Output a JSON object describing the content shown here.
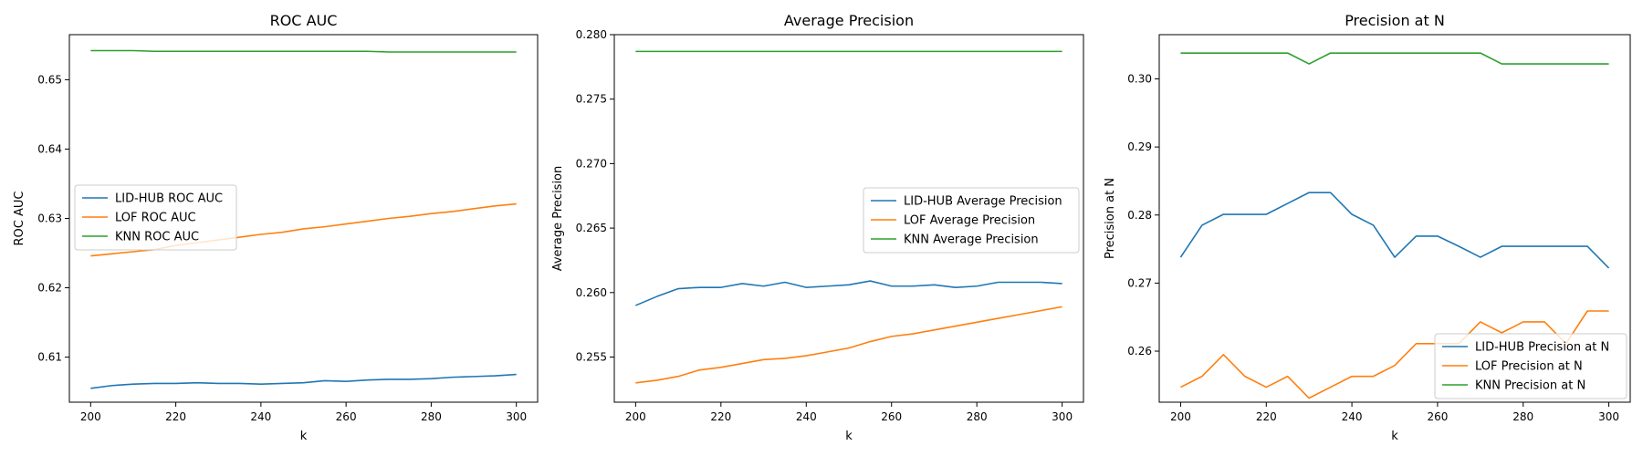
{
  "chart_data": [
    {
      "type": "line",
      "title": "ROC AUC",
      "xlabel": "k",
      "ylabel": "ROC AUC",
      "xlim": [
        195,
        305
      ],
      "ylim": [
        0.6035,
        0.6565
      ],
      "xticks": [
        200,
        220,
        240,
        260,
        280,
        300
      ],
      "yticks": [
        0.61,
        0.62,
        0.63,
        0.64,
        0.65
      ],
      "tick_decimals": 2,
      "legend_position": "center-left",
      "x": [
        200,
        205,
        210,
        215,
        220,
        225,
        230,
        235,
        240,
        245,
        250,
        255,
        260,
        265,
        270,
        275,
        280,
        285,
        290,
        295,
        300
      ],
      "series": [
        {
          "name": "LID-HUB ROC AUC",
          "color": "#1f77b4",
          "values": [
            0.6055,
            0.6059,
            0.6061,
            0.6062,
            0.6062,
            0.6063,
            0.6062,
            0.6062,
            0.6061,
            0.6062,
            0.6063,
            0.6066,
            0.6065,
            0.6067,
            0.6068,
            0.6068,
            0.6069,
            0.6071,
            0.6072,
            0.6073,
            0.6075
          ]
        },
        {
          "name": "LOF ROC AUC",
          "color": "#ff7f0e",
          "values": [
            0.6246,
            0.6249,
            0.6252,
            0.6255,
            0.6261,
            0.6265,
            0.6269,
            0.6273,
            0.6277,
            0.628,
            0.6285,
            0.6288,
            0.6292,
            0.6296,
            0.63,
            0.6303,
            0.6307,
            0.631,
            0.6314,
            0.6318,
            0.6321
          ]
        },
        {
          "name": "KNN ROC AUC",
          "color": "#2ca02c",
          "values": [
            0.6542,
            0.6542,
            0.6542,
            0.6541,
            0.6541,
            0.6541,
            0.6541,
            0.6541,
            0.6541,
            0.6541,
            0.6541,
            0.6541,
            0.6541,
            0.6541,
            0.654,
            0.654,
            0.654,
            0.654,
            0.654,
            0.654,
            0.654
          ]
        }
      ]
    },
    {
      "type": "line",
      "title": "Average Precision",
      "xlabel": "k",
      "ylabel": "Average Precision",
      "xlim": [
        195,
        305
      ],
      "ylim": [
        0.2515,
        0.28
      ],
      "xticks": [
        200,
        220,
        240,
        260,
        280,
        300
      ],
      "yticks": [
        0.255,
        0.26,
        0.265,
        0.27,
        0.275,
        0.28
      ],
      "tick_decimals": 3,
      "legend_position": "center-right",
      "x": [
        200,
        205,
        210,
        215,
        220,
        225,
        230,
        235,
        240,
        245,
        250,
        255,
        260,
        265,
        270,
        275,
        280,
        285,
        290,
        295,
        300
      ],
      "series": [
        {
          "name": "LID-HUB Average Precision",
          "color": "#1f77b4",
          "values": [
            0.259,
            0.2597,
            0.2603,
            0.2604,
            0.2604,
            0.2607,
            0.2605,
            0.2608,
            0.2604,
            0.2605,
            0.2606,
            0.2609,
            0.2605,
            0.2605,
            0.2606,
            0.2604,
            0.2605,
            0.2608,
            0.2608,
            0.2608,
            0.2607
          ]
        },
        {
          "name": "LOF Average Precision",
          "color": "#ff7f0e",
          "values": [
            0.253,
            0.2532,
            0.2535,
            0.254,
            0.2542,
            0.2545,
            0.2548,
            0.2549,
            0.2551,
            0.2554,
            0.2557,
            0.2562,
            0.2566,
            0.2568,
            0.2571,
            0.2574,
            0.2577,
            0.258,
            0.2583,
            0.2586,
            0.2589
          ]
        },
        {
          "name": "KNN Average Precision",
          "color": "#2ca02c",
          "values": [
            0.2787,
            0.2787,
            0.2787,
            0.2787,
            0.2787,
            0.2787,
            0.2787,
            0.2787,
            0.2787,
            0.2787,
            0.2787,
            0.2787,
            0.2787,
            0.2787,
            0.2787,
            0.2787,
            0.2787,
            0.2787,
            0.2787,
            0.2787,
            0.2787
          ]
        }
      ]
    },
    {
      "type": "line",
      "title": "Precision at N",
      "xlabel": "k",
      "ylabel": "Precision at N",
      "xlim": [
        195,
        305
      ],
      "ylim": [
        0.2525,
        0.3065
      ],
      "xticks": [
        200,
        220,
        240,
        260,
        280,
        300
      ],
      "yticks": [
        0.26,
        0.27,
        0.28,
        0.29,
        0.3
      ],
      "tick_decimals": 2,
      "legend_position": "lower-right",
      "x": [
        200,
        205,
        210,
        215,
        220,
        225,
        230,
        235,
        240,
        245,
        250,
        255,
        260,
        265,
        270,
        275,
        280,
        285,
        290,
        295,
        300
      ],
      "series": [
        {
          "name": "LID-HUB Precision at N",
          "color": "#1f77b4",
          "values": [
            0.2738,
            0.2785,
            0.2801,
            0.2801,
            0.2801,
            0.2817,
            0.2833,
            0.2833,
            0.2801,
            0.2785,
            0.2738,
            0.2769,
            0.2769,
            0.2754,
            0.2738,
            0.2754,
            0.2754,
            0.2754,
            0.2754,
            0.2754,
            0.2722
          ]
        },
        {
          "name": "LOF Precision at N",
          "color": "#ff7f0e",
          "values": [
            0.2547,
            0.2563,
            0.2595,
            0.2563,
            0.2547,
            0.2563,
            0.2531,
            0.2547,
            0.2563,
            0.2563,
            0.2579,
            0.2611,
            0.2611,
            0.2611,
            0.2643,
            0.2627,
            0.2643,
            0.2643,
            0.2611,
            0.2659,
            0.2659
          ]
        },
        {
          "name": "KNN Precision at N",
          "color": "#2ca02c",
          "values": [
            0.3038,
            0.3038,
            0.3038,
            0.3038,
            0.3038,
            0.3038,
            0.3022,
            0.3038,
            0.3038,
            0.3038,
            0.3038,
            0.3038,
            0.3038,
            0.3038,
            0.3038,
            0.3022,
            0.3022,
            0.3022,
            0.3022,
            0.3022,
            0.3022
          ]
        }
      ]
    }
  ]
}
